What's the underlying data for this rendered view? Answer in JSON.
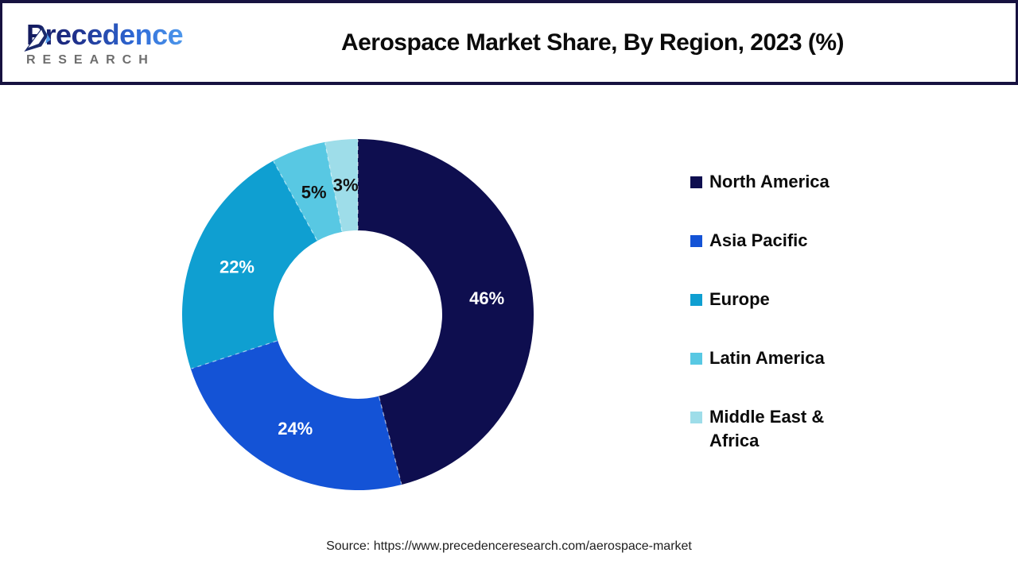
{
  "header": {
    "logo": {
      "brand": "Precedence",
      "subbrand": "RESEARCH"
    },
    "title": "Aerospace Market Share, By Region, 2023 (%)"
  },
  "footer": {
    "source": "Source: https://www.precedenceresearch.com/aerospace-market"
  },
  "theme": {
    "frame_color": "#171240",
    "background": "#ffffff"
  },
  "chart_data": {
    "type": "pie",
    "subtype": "donut",
    "title": "Aerospace Market Share, By Region, 2023 (%)",
    "categories": [
      "North America",
      "Asia Pacific",
      "Europe",
      "Latin America",
      "Middle East & Africa"
    ],
    "values": [
      46,
      24,
      22,
      5,
      3
    ],
    "unit": "%",
    "data_labels": [
      "46%",
      "24%",
      "22%",
      "5%",
      "3%"
    ],
    "colors": [
      "#0e0e4f",
      "#1453d6",
      "#0f9fd1",
      "#58c8e3",
      "#9edde9"
    ],
    "data_label_colors": [
      "#ffffff",
      "#ffffff",
      "#ffffff",
      "#111111",
      "#111111"
    ],
    "legend_position": "right",
    "start_angle_deg": 0,
    "direction": "clockwise",
    "donut_hole_ratio": 0.48
  }
}
